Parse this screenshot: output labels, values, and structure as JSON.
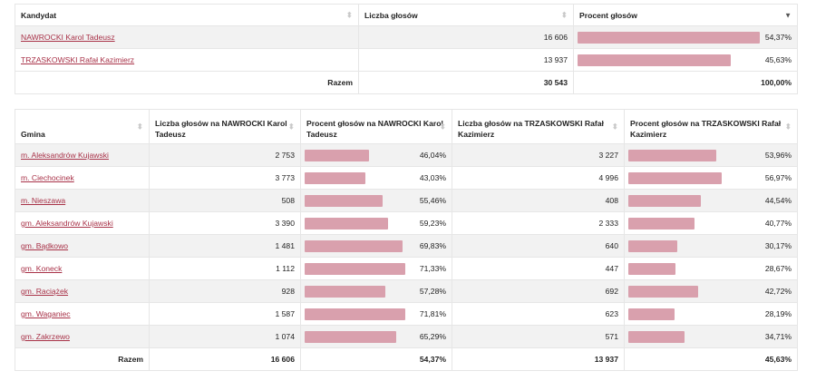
{
  "summary": {
    "headers": [
      "Kandydat",
      "Liczba głosów",
      "Procent głosów"
    ],
    "rows": [
      {
        "name": "NAWROCKI Karol Tadeusz",
        "votes": "16 606",
        "percent": "54,37%",
        "fraction": 0.5437
      },
      {
        "name": "TRZASKOWSKI Rafał Kazimierz",
        "votes": "13 937",
        "percent": "45,63%",
        "fraction": 0.4563
      }
    ],
    "total": {
      "label": "Razem",
      "votes": "30 543",
      "percent": "100,00%"
    }
  },
  "gminy": {
    "headers": {
      "gmina": "Gmina",
      "votes_a": "Liczba głosów na NAWROCKI Karol Tadeusz",
      "pct_a": "Procent głosów na NAWROCKI Karol Tadeusz",
      "votes_b": "Liczba głosów na TRZASKOWSKI Rafał Kazimierz",
      "pct_b": "Procent głosów na TRZASKOWSKI Rafał Kazimierz"
    },
    "rows": [
      {
        "name": "m. Aleksandrów Kujawski",
        "votes_a": "2 753",
        "pct_a": "46,04%",
        "frac_a": 0.4604,
        "votes_b": "3 227",
        "pct_b": "53,96%",
        "frac_b": 0.5396
      },
      {
        "name": "m. Ciechocinek",
        "votes_a": "3 773",
        "pct_a": "43,03%",
        "frac_a": 0.4303,
        "votes_b": "4 996",
        "pct_b": "56,97%",
        "frac_b": 0.5697
      },
      {
        "name": "m. Nieszawa",
        "votes_a": "508",
        "pct_a": "55,46%",
        "frac_a": 0.5546,
        "votes_b": "408",
        "pct_b": "44,54%",
        "frac_b": 0.4454
      },
      {
        "name": "gm. Aleksandrów Kujawski",
        "votes_a": "3 390",
        "pct_a": "59,23%",
        "frac_a": 0.5923,
        "votes_b": "2 333",
        "pct_b": "40,77%",
        "frac_b": 0.4077
      },
      {
        "name": "gm. Bądkowo",
        "votes_a": "1 481",
        "pct_a": "69,83%",
        "frac_a": 0.6983,
        "votes_b": "640",
        "pct_b": "30,17%",
        "frac_b": 0.3017
      },
      {
        "name": "gm. Koneck",
        "votes_a": "1 112",
        "pct_a": "71,33%",
        "frac_a": 0.7133,
        "votes_b": "447",
        "pct_b": "28,67%",
        "frac_b": 0.2867
      },
      {
        "name": "gm. Raciążek",
        "votes_a": "928",
        "pct_a": "57,28%",
        "frac_a": 0.5728,
        "votes_b": "692",
        "pct_b": "42,72%",
        "frac_b": 0.4272
      },
      {
        "name": "gm. Waganiec",
        "votes_a": "1 587",
        "pct_a": "71,81%",
        "frac_a": 0.7181,
        "votes_b": "623",
        "pct_b": "28,19%",
        "frac_b": 0.2819
      },
      {
        "name": "gm. Zakrzewo",
        "votes_a": "1 074",
        "pct_a": "65,29%",
        "frac_a": 0.6529,
        "votes_b": "571",
        "pct_b": "34,71%",
        "frac_b": 0.3471
      }
    ],
    "total": {
      "label": "Razem",
      "votes_a": "16 606",
      "pct_a": "54,37%",
      "votes_b": "13 937",
      "pct_b": "45,63%"
    }
  },
  "colors": {
    "bar": "#d9a0ad",
    "link": "#a83248",
    "stripe": "#f2f2f2"
  },
  "icons": {
    "sort": "sort-up-down-icon",
    "sort_desc": "sort-desc-icon"
  }
}
